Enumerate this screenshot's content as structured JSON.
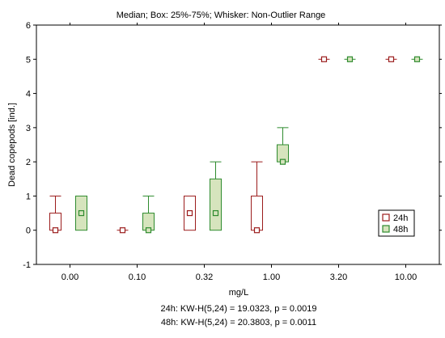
{
  "chart_data": {
    "type": "boxplot",
    "title": "Median; Box: 25%-75%; Whisker: Non-Outlier Range",
    "xlabel": "mg/L",
    "ylabel": "Dead copepods [ind.]",
    "ylim": [
      -1,
      6
    ],
    "yticks": [
      -1,
      0,
      1,
      2,
      3,
      4,
      5,
      6
    ],
    "grid": false,
    "legend_position": "right",
    "categories": [
      "0.00",
      "0.10",
      "0.32",
      "1.00",
      "3.20",
      "10.00"
    ],
    "series": [
      {
        "name": "24h",
        "color": "#9b1c1c",
        "fill": "#ffffff",
        "median": [
          0,
          0,
          0.5,
          0,
          5,
          5
        ],
        "q1": [
          0,
          0,
          0,
          0,
          5,
          5
        ],
        "q3": [
          0.5,
          0,
          1,
          1,
          5,
          5
        ],
        "whisker_low": [
          0,
          0,
          0,
          0,
          5,
          5
        ],
        "whisker_high": [
          1,
          0,
          1,
          2,
          5,
          5
        ]
      },
      {
        "name": "48h",
        "color": "#2e8b2e",
        "fill": "#d6e4bd",
        "median": [
          0.5,
          0,
          0.5,
          2,
          5,
          5
        ],
        "q1": [
          0,
          0,
          0,
          2,
          5,
          5
        ],
        "q3": [
          1,
          0.5,
          1.5,
          2.5,
          5,
          5
        ],
        "whisker_low": [
          0,
          0,
          0,
          2,
          5,
          5
        ],
        "whisker_high": [
          1,
          1,
          2,
          3,
          5,
          5
        ]
      }
    ],
    "footnotes": [
      "24h:  KW-H(5,24) = 19.0323, p = 0.0019",
      "48h:  KW-H(5,24) = 20.3803, p = 0.0011"
    ]
  }
}
